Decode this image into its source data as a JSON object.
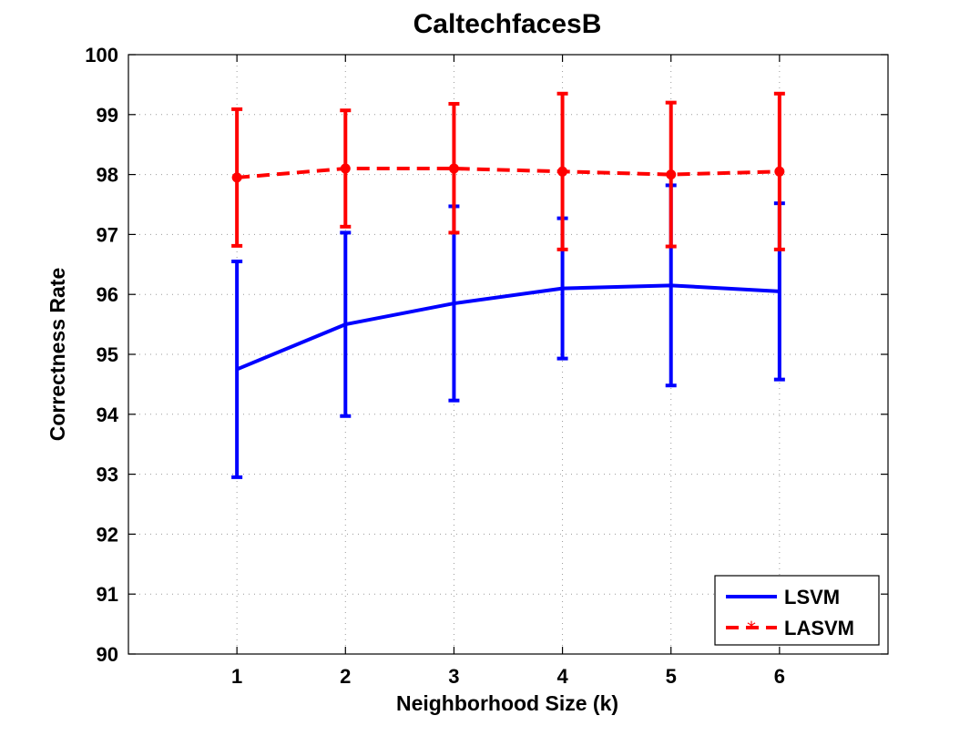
{
  "chart_data": {
    "type": "line",
    "title": "CaltechfacesB",
    "xlabel": "Neighborhood Size (k)",
    "ylabel": "Correctness Rate",
    "xlim": [
      0,
      7
    ],
    "ylim": [
      90,
      100
    ],
    "x_ticks": [
      1,
      2,
      3,
      4,
      5,
      6
    ],
    "y_ticks": [
      90,
      91,
      92,
      93,
      94,
      95,
      96,
      97,
      98,
      99,
      100
    ],
    "grid": true,
    "legend_position": "bottom-right",
    "x": [
      1,
      2,
      3,
      4,
      5,
      6
    ],
    "series": [
      {
        "name": "LSVM",
        "color": "#0000ff",
        "line_style": "solid",
        "marker": "none",
        "values": [
          94.75,
          95.5,
          95.85,
          96.1,
          96.15,
          96.05
        ],
        "error_low": [
          92.95,
          93.97,
          94.23,
          94.93,
          94.48,
          94.58
        ],
        "error_high": [
          96.55,
          97.03,
          97.47,
          97.27,
          97.82,
          97.52
        ]
      },
      {
        "name": "LASVM",
        "color": "#ff0000",
        "line_style": "dashed",
        "marker": "circle",
        "values": [
          97.95,
          98.1,
          98.1,
          98.05,
          98.0,
          98.05
        ],
        "error_low": [
          96.81,
          97.13,
          97.03,
          96.75,
          96.8,
          96.75
        ],
        "error_high": [
          99.09,
          99.07,
          99.18,
          99.35,
          99.2,
          99.35
        ]
      }
    ]
  }
}
